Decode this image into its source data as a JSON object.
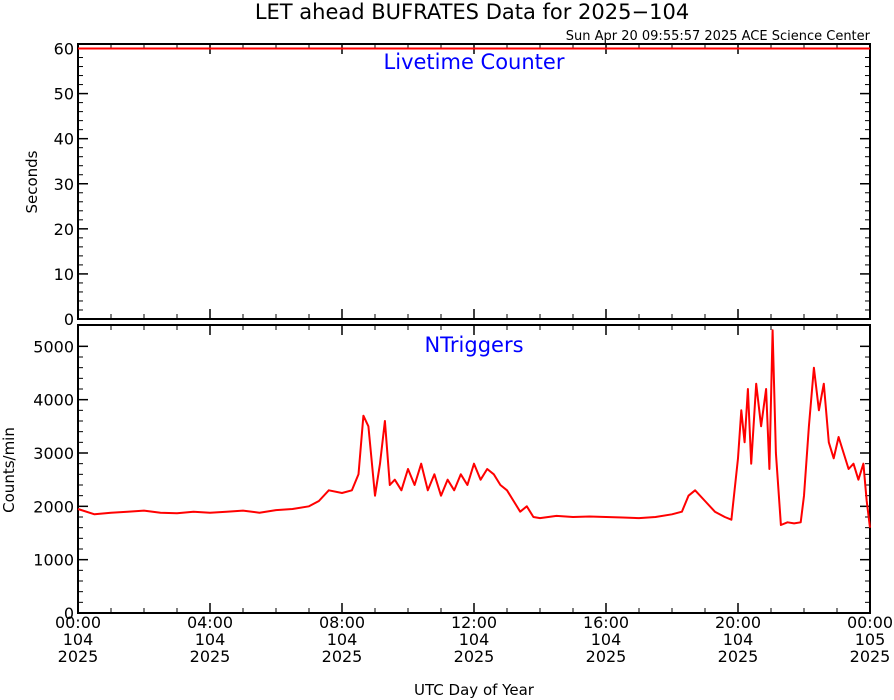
{
  "title": "LET ahead BUFRATES Data for 2025−104",
  "timestamp": "Sun Apr 20 09:55:57 2025 ACE Science Center",
  "xlabel": "UTC Day of Year",
  "x_ticks": [
    {
      "time": "00:00",
      "day": "104",
      "year": "2025"
    },
    {
      "time": "04:00",
      "day": "104",
      "year": "2025"
    },
    {
      "time": "08:00",
      "day": "104",
      "year": "2025"
    },
    {
      "time": "12:00",
      "day": "104",
      "year": "2025"
    },
    {
      "time": "16:00",
      "day": "104",
      "year": "2025"
    },
    {
      "time": "20:00",
      "day": "104",
      "year": "2025"
    },
    {
      "time": "00:00",
      "day": "105",
      "year": "2025"
    }
  ],
  "colors": {
    "line": "#ff0000",
    "panel_label": "#0000ff",
    "axes": "#000000"
  },
  "chart_data": [
    {
      "type": "line",
      "title": "Livetime Counter",
      "ylabel": "Seconds",
      "xlim": [
        0,
        24
      ],
      "ylim": [
        0,
        61
      ],
      "yticks": [
        0,
        10,
        20,
        30,
        40,
        50,
        60
      ],
      "series": [
        {
          "x": [
            0,
            24
          ],
          "values": [
            60,
            60
          ]
        }
      ]
    },
    {
      "type": "line",
      "title": "NTriggers",
      "ylabel": "Counts/min",
      "xlim": [
        0,
        24
      ],
      "ylim": [
        0,
        5400
      ],
      "yticks": [
        0,
        1000,
        2000,
        3000,
        4000,
        5000
      ],
      "series": [
        {
          "x": [
            0,
            0.5,
            1,
            1.5,
            2,
            2.5,
            3,
            3.5,
            4,
            4.5,
            5,
            5.5,
            6,
            6.5,
            7,
            7.3,
            7.6,
            8,
            8.3,
            8.5,
            8.65,
            8.8,
            9,
            9.15,
            9.3,
            9.45,
            9.6,
            9.8,
            10,
            10.2,
            10.4,
            10.6,
            10.8,
            11,
            11.2,
            11.4,
            11.6,
            11.8,
            12,
            12.2,
            12.4,
            12.6,
            12.8,
            13,
            13.2,
            13.4,
            13.6,
            13.8,
            14,
            14.5,
            15,
            15.5,
            16,
            16.5,
            17,
            17.5,
            18,
            18.3,
            18.5,
            18.7,
            19,
            19.3,
            19.6,
            19.8,
            20,
            20.1,
            20.2,
            20.3,
            20.4,
            20.55,
            20.7,
            20.85,
            20.95,
            21.05,
            21.15,
            21.3,
            21.5,
            21.7,
            21.9,
            22,
            22.15,
            22.3,
            22.45,
            22.6,
            22.75,
            22.9,
            23.05,
            23.2,
            23.35,
            23.5,
            23.65,
            23.8,
            23.9,
            24
          ],
          "values": [
            1950,
            1850,
            1880,
            1900,
            1920,
            1880,
            1870,
            1900,
            1880,
            1900,
            1920,
            1880,
            1930,
            1950,
            2000,
            2100,
            2300,
            2250,
            2300,
            2600,
            3700,
            3500,
            2200,
            2800,
            3600,
            2400,
            2500,
            2300,
            2700,
            2400,
            2800,
            2300,
            2600,
            2200,
            2500,
            2300,
            2600,
            2400,
            2800,
            2500,
            2700,
            2600,
            2400,
            2300,
            2100,
            1900,
            2000,
            1800,
            1780,
            1820,
            1800,
            1810,
            1800,
            1790,
            1780,
            1800,
            1850,
            1900,
            2200,
            2300,
            2100,
            1900,
            1800,
            1750,
            2900,
            3800,
            3200,
            4200,
            2800,
            4300,
            3500,
            4200,
            2700,
            5300,
            3000,
            1650,
            1700,
            1680,
            1700,
            2200,
            3500,
            4600,
            3800,
            4300,
            3200,
            2900,
            3300,
            3000,
            2700,
            2800,
            2500,
            2800,
            2100,
            1600
          ]
        }
      ]
    }
  ]
}
